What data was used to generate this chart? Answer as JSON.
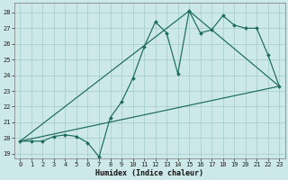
{
  "xlabel": "Humidex (Indice chaleur)",
  "bg_color": "#cde8e8",
  "grid_color": "#aacece",
  "line_color": "#1a6b5a",
  "xlim": [
    -0.5,
    23.5
  ],
  "ylim": [
    18.7,
    28.6
  ],
  "xticks": [
    0,
    1,
    2,
    3,
    4,
    5,
    6,
    7,
    8,
    9,
    10,
    11,
    12,
    13,
    14,
    15,
    16,
    17,
    18,
    19,
    20,
    21,
    22,
    23
  ],
  "yticks": [
    19,
    20,
    21,
    22,
    23,
    24,
    25,
    26,
    27,
    28
  ],
  "series1_x": [
    0,
    1,
    2,
    3,
    4,
    5,
    6,
    7,
    8,
    9,
    10,
    11,
    12,
    13,
    14,
    15,
    16,
    17,
    18,
    19,
    20,
    21,
    22,
    23
  ],
  "series1_y": [
    19.8,
    19.8,
    19.8,
    20.1,
    20.2,
    20.1,
    19.7,
    18.8,
    21.3,
    22.3,
    23.8,
    25.8,
    27.4,
    26.7,
    24.1,
    28.1,
    26.7,
    26.9,
    27.8,
    27.2,
    27.0,
    27.0,
    25.3,
    23.3
  ],
  "series2_x": [
    0,
    23
  ],
  "series2_y": [
    19.8,
    23.3
  ],
  "series3_x": [
    0,
    15,
    23
  ],
  "series3_y": [
    19.8,
    28.1,
    23.3
  ],
  "xlabel_fontsize": 6.0,
  "tick_fontsize": 5.0,
  "linewidth": 0.85,
  "markersize": 2.0
}
